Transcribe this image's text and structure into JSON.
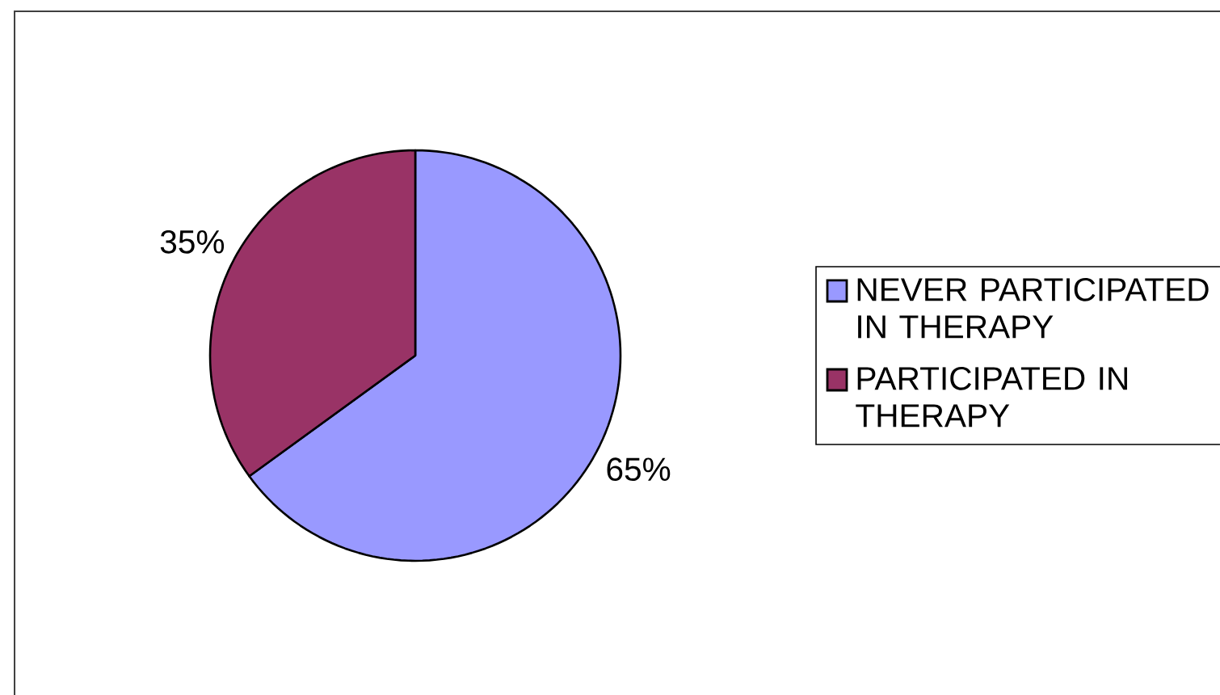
{
  "chart_data": {
    "type": "pie",
    "categories": [
      "NEVER PARTICIPATED IN THERAPY",
      "PARTICIPATED IN THERAPY"
    ],
    "values": [
      65,
      35
    ],
    "value_labels": [
      "65%",
      "35%"
    ],
    "colors": [
      "#9999ff",
      "#993366"
    ],
    "legend": "right"
  }
}
